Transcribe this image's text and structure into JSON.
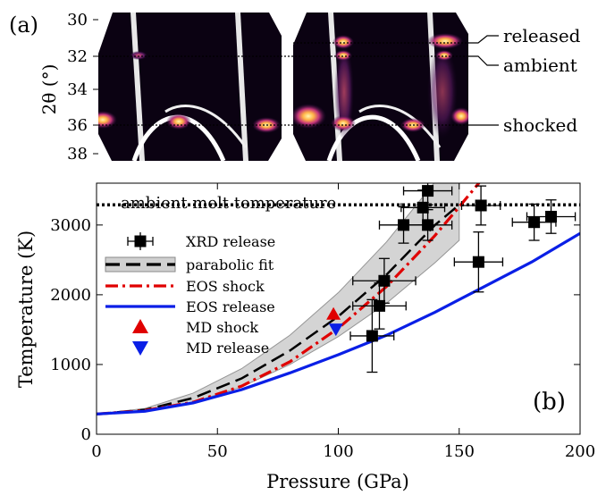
{
  "panel_a": {
    "label": "(a)",
    "ylabel": "2θ (°)",
    "y_ticks": [
      "30",
      "32",
      "34",
      "36",
      "38"
    ],
    "annotations": [
      "released",
      "ambient",
      "shocked"
    ]
  },
  "chart_data": {
    "type": "scatter",
    "panel_label": "(b)",
    "xlabel": "Pressure (GPa)",
    "ylabel": "Temperature (K)",
    "xlim": [
      0,
      200
    ],
    "ylim": [
      0,
      3600
    ],
    "x_ticks": [
      "0",
      "50",
      "100",
      "150",
      "200"
    ],
    "y_ticks": [
      "0",
      "1000",
      "2000",
      "3000"
    ],
    "grid": false,
    "legend_position": "top-left",
    "reference_line": {
      "label": "ambient melt temperature",
      "y": 3290
    },
    "series": [
      {
        "name": "XRD release",
        "kind": "points",
        "color": "#000000",
        "points": [
          {
            "x": 114,
            "y": 1410,
            "xerr": 9,
            "yerr": 520
          },
          {
            "x": 117,
            "y": 1840,
            "xerr": 11,
            "yerr": 330
          },
          {
            "x": 119,
            "y": 2200,
            "xerr": 13,
            "yerr": 320
          },
          {
            "x": 127,
            "y": 3000,
            "xerr": 10,
            "yerr": 260
          },
          {
            "x": 135,
            "y": 3250,
            "xerr": 9,
            "yerr": 250
          },
          {
            "x": 137,
            "y": 3490,
            "xerr": 10,
            "yerr": 200
          },
          {
            "x": 137,
            "y": 3000,
            "xerr": 10,
            "yerr": 220
          },
          {
            "x": 158,
            "y": 2470,
            "xerr": 10,
            "yerr": 430
          },
          {
            "x": 159,
            "y": 3280,
            "xerr": 8,
            "yerr": 280
          },
          {
            "x": 181,
            "y": 3040,
            "xerr": 9,
            "yerr": 260
          },
          {
            "x": 188,
            "y": 3120,
            "xerr": 10,
            "yerr": 240
          }
        ]
      },
      {
        "name": "parabolic fit",
        "kind": "line",
        "color": "#000000",
        "dash": "long",
        "x": [
          0,
          20,
          40,
          60,
          80,
          100,
          120,
          140,
          150
        ],
        "y": [
          290,
          350,
          520,
          800,
          1200,
          1690,
          2290,
          3000,
          3290
        ],
        "band_lower": [
          290,
          340,
          460,
          680,
          1000,
          1400,
          1880,
          2460,
          2780
        ],
        "band_upper": [
          290,
          370,
          590,
          940,
          1420,
          2030,
          2760,
          3620,
          3720
        ]
      },
      {
        "name": "EOS shock",
        "kind": "line",
        "color": "#e00000",
        "dash": "dashdot",
        "x": [
          0,
          20,
          40,
          60,
          80,
          100,
          120,
          140,
          150,
          160,
          165
        ],
        "y": [
          290,
          340,
          460,
          690,
          1040,
          1520,
          2120,
          2850,
          3260,
          3680,
          3900
        ]
      },
      {
        "name": "EOS release",
        "kind": "line",
        "color": "#0a1fe6",
        "dash": "solid",
        "x": [
          0,
          20,
          40,
          60,
          80,
          100,
          120,
          140,
          160,
          180,
          200
        ],
        "y": [
          290,
          330,
          450,
          640,
          880,
          1140,
          1420,
          1750,
          2110,
          2470,
          2880
        ]
      },
      {
        "name": "MD shock",
        "kind": "marker",
        "color": "#e00000",
        "marker": "triangle-up",
        "points": [
          {
            "x": 98,
            "y": 1720
          }
        ]
      },
      {
        "name": "MD release",
        "kind": "marker",
        "color": "#0a1fe6",
        "marker": "triangle-down",
        "points": [
          {
            "x": 99,
            "y": 1510
          }
        ]
      }
    ]
  }
}
